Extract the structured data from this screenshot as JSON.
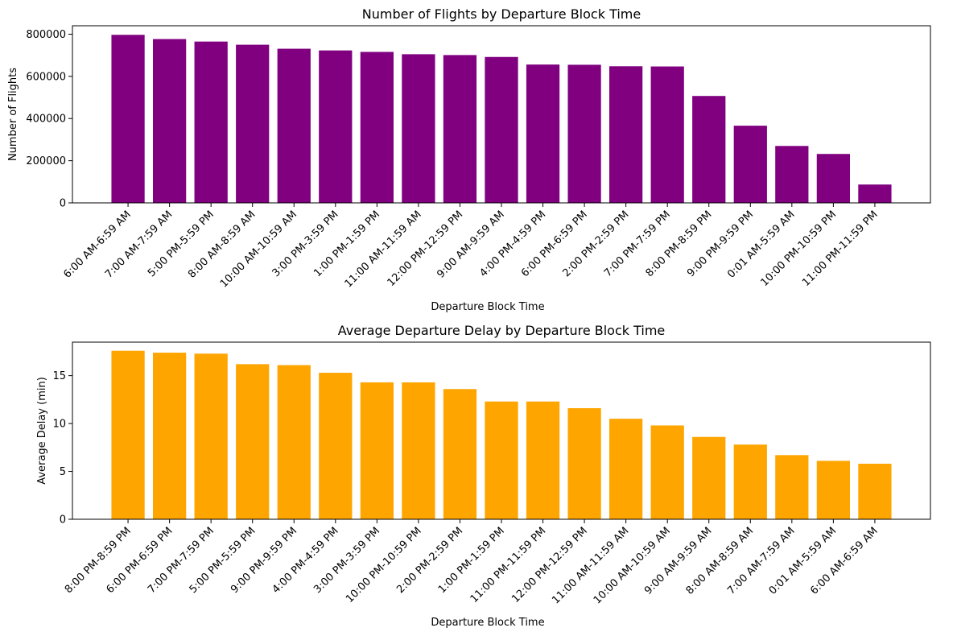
{
  "chart_data": [
    {
      "type": "bar",
      "title": "Number of Flights by Departure Block Time",
      "xlabel": "Departure Block Time",
      "ylabel": "Number of Flights",
      "ylim": [
        0,
        840000
      ],
      "yticks": [
        0,
        200000,
        400000,
        600000,
        800000
      ],
      "ytick_labels": [
        "0",
        "200000",
        "400000",
        "600000",
        "800000"
      ],
      "color": "#800080",
      "categories": [
        "6:00 AM-6:59 AM",
        "7:00 AM-7:59 AM",
        "5:00 PM-5:59 PM",
        "8:00 AM-8:59 AM",
        "10:00 AM-10:59 AM",
        "3:00 PM-3:59 PM",
        "1:00 PM-1:59 PM",
        "11:00 AM-11:59 AM",
        "12:00 PM-12:59 PM",
        "9:00 AM-9:59 AM",
        "4:00 PM-4:59 PM",
        "6:00 PM-6:59 PM",
        "2:00 PM-2:59 PM",
        "7:00 PM-7:59 PM",
        "8:00 PM-8:59 PM",
        "9:00 PM-9:59 PM",
        "0:01 AM-5:59 AM",
        "10:00 PM-10:59 PM",
        "11:00 PM-11:59 PM"
      ],
      "values": [
        797000,
        777000,
        765000,
        750000,
        731000,
        723000,
        716000,
        705000,
        701000,
        692000,
        656000,
        655000,
        648000,
        647000,
        507000,
        366000,
        270000,
        232000,
        87000
      ],
      "grid": false
    },
    {
      "type": "bar",
      "title": "Average Departure Delay by Departure Block Time",
      "xlabel": "Departure Block Time",
      "ylabel": "Average Delay (min)",
      "ylim": [
        0,
        18.5
      ],
      "yticks": [
        0,
        5,
        10,
        15
      ],
      "ytick_labels": [
        "0",
        "5",
        "10",
        "15"
      ],
      "color": "#FFA500",
      "categories": [
        "8:00 PM-8:59 PM",
        "6:00 PM-6:59 PM",
        "7:00 PM-7:59 PM",
        "5:00 PM-5:59 PM",
        "9:00 PM-9:59 PM",
        "4:00 PM-4:59 PM",
        "3:00 PM-3:59 PM",
        "10:00 PM-10:59 PM",
        "2:00 PM-2:59 PM",
        "1:00 PM-1:59 PM",
        "11:00 PM-11:59 PM",
        "12:00 PM-12:59 PM",
        "11:00 AM-11:59 AM",
        "10:00 AM-10:59 AM",
        "9:00 AM-9:59 AM",
        "8:00 AM-8:59 AM",
        "7:00 AM-7:59 AM",
        "0:01 AM-5:59 AM",
        "6:00 AM-6:59 AM"
      ],
      "values": [
        17.6,
        17.4,
        17.3,
        16.2,
        16.1,
        15.3,
        14.3,
        14.3,
        13.6,
        12.3,
        12.3,
        11.6,
        10.5,
        9.8,
        8.6,
        7.8,
        6.7,
        6.1,
        5.8
      ],
      "grid": false
    }
  ]
}
